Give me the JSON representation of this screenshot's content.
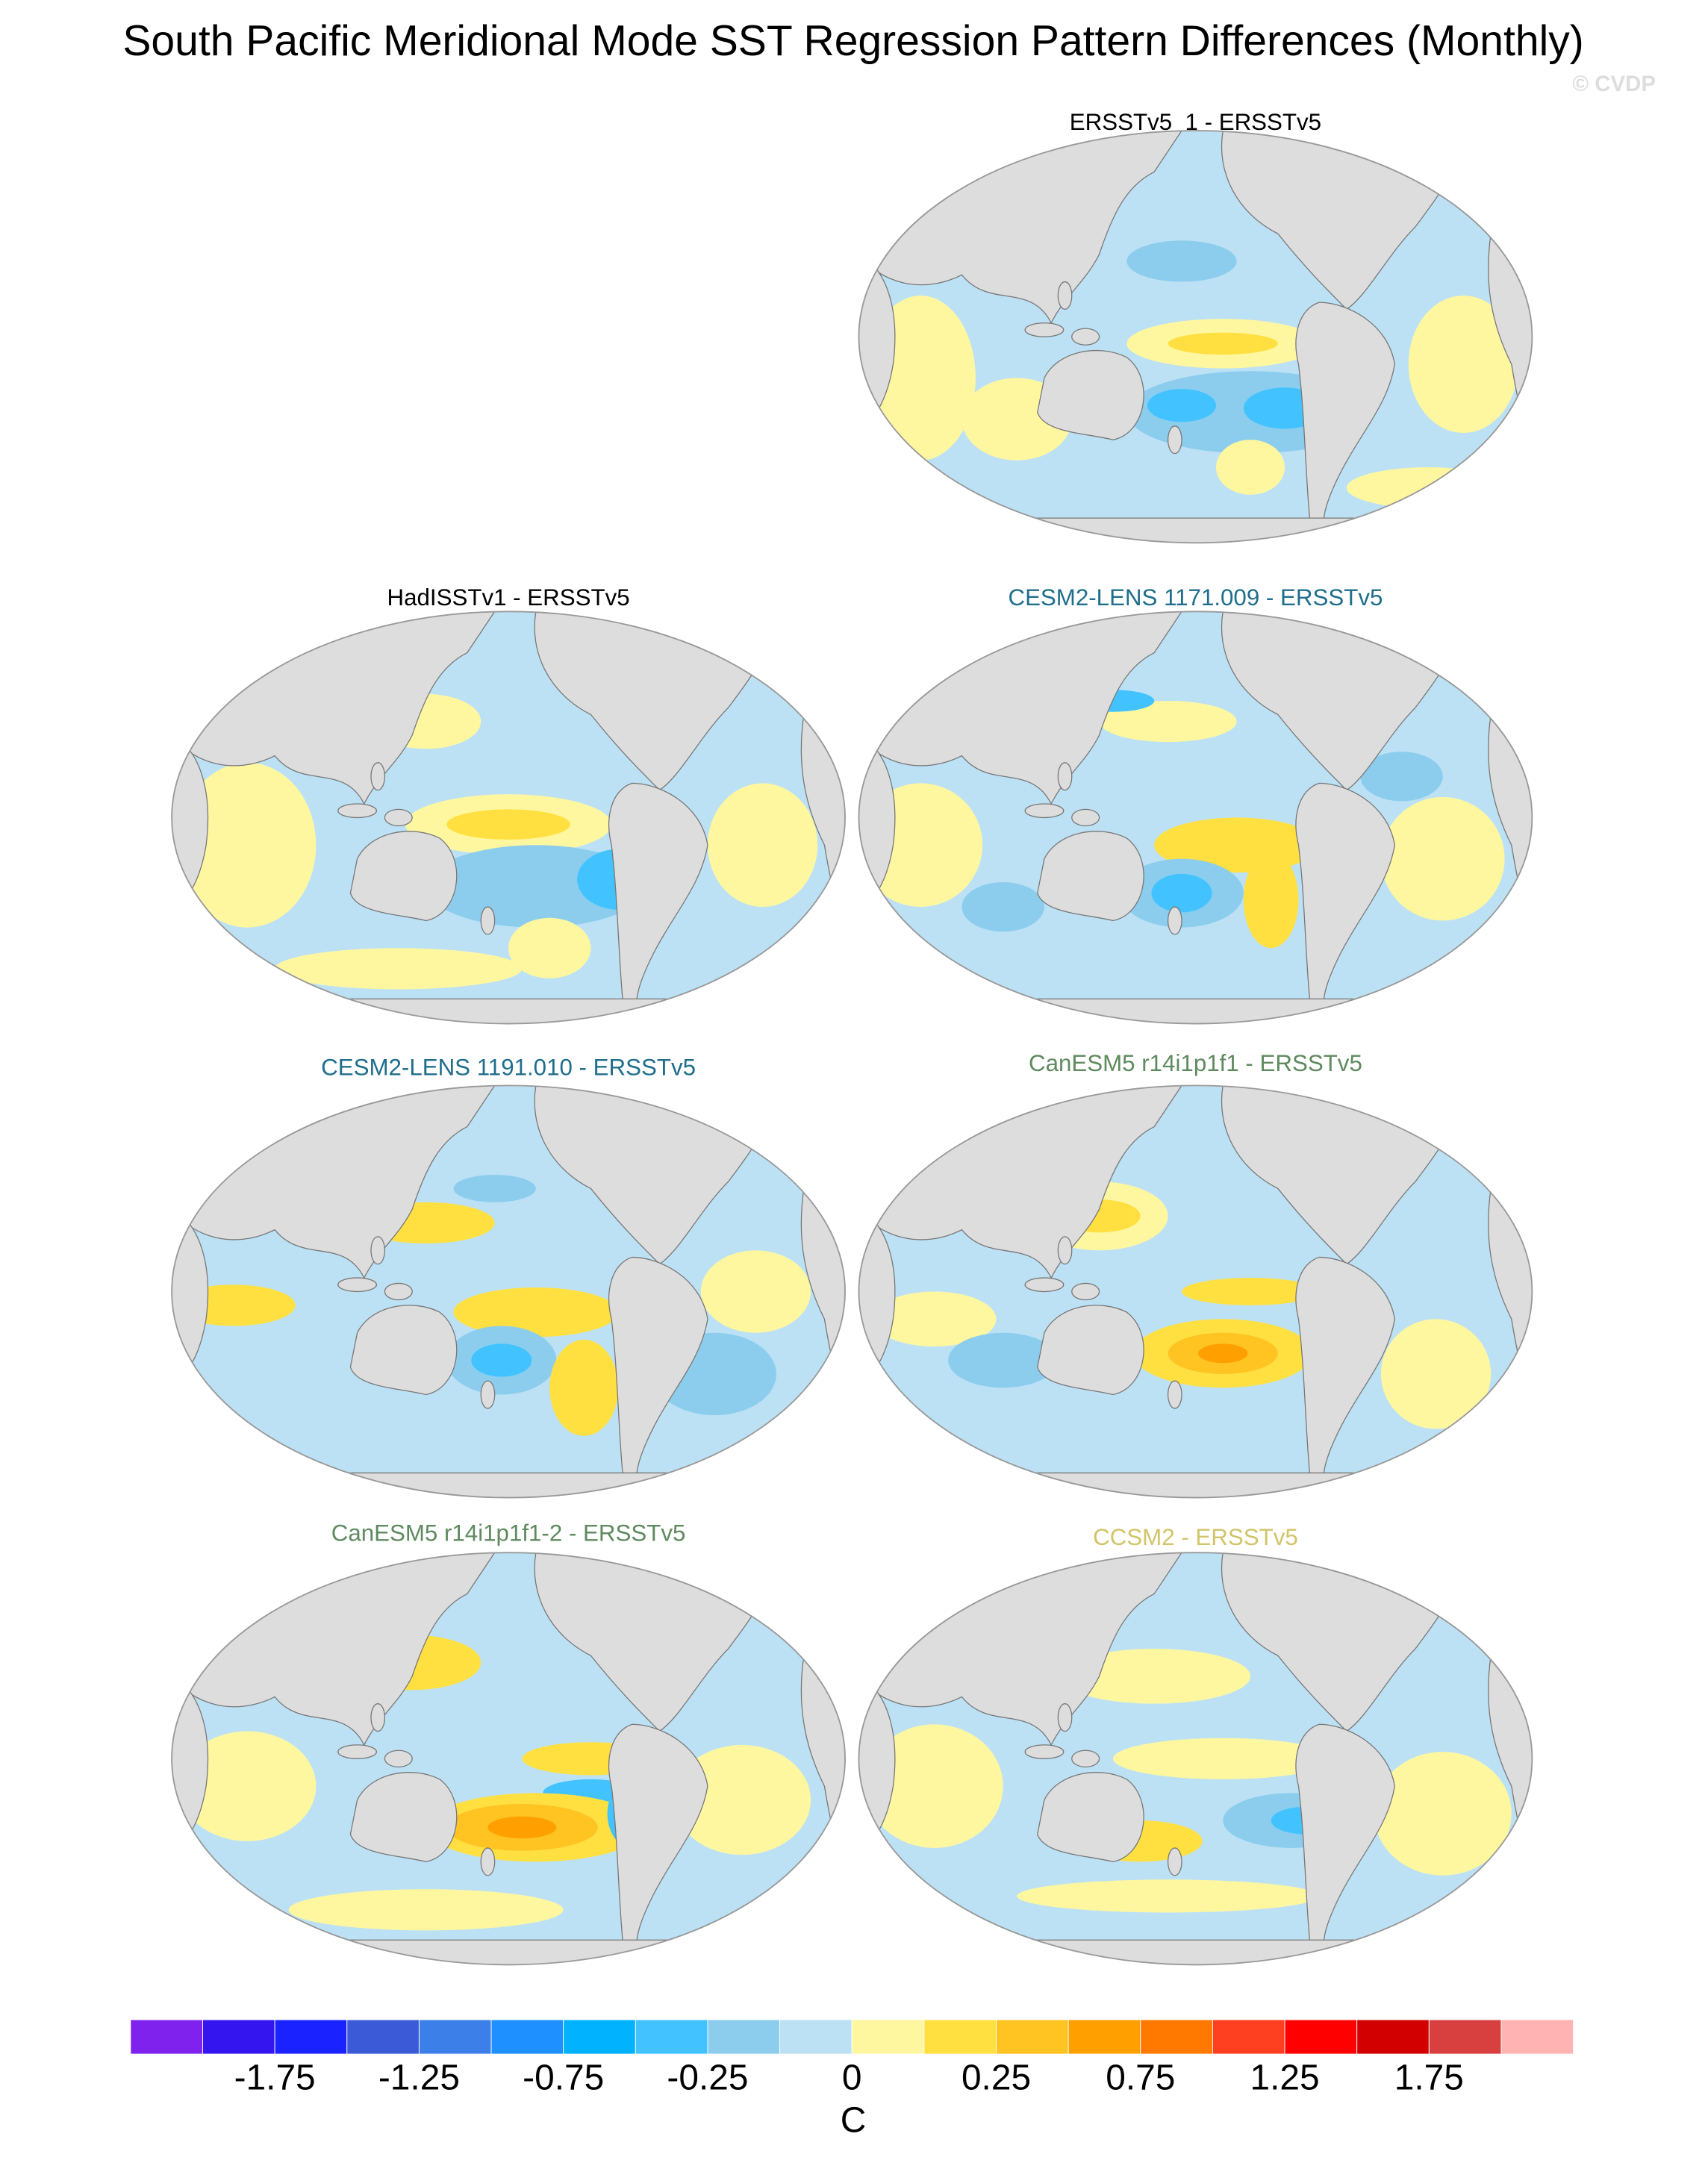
{
  "title": "South Pacific Meridional Mode SST Regression Pattern Differences (Monthly)",
  "watermark": "© CVDP",
  "panels": [
    {
      "title": "ERSSTv5_1 - ERSSTv5",
      "color": "#000000"
    },
    {
      "title": "HadISSTv1 - ERSSTv5",
      "color": "#000000"
    },
    {
      "title": "CESM2-LENS 1171.009 - ERSSTv5",
      "color": "#1f6e8c"
    },
    {
      "title": "CESM2-LENS 1191.010 - ERSSTv5",
      "color": "#1f6e8c"
    },
    {
      "title": "CanESM5 r14i1p1f1 - ERSSTv5",
      "color": "#5f8a5f"
    },
    {
      "title": "CanESM5 r14i1p1f1-2 - ERSSTv5",
      "color": "#5f8a5f"
    },
    {
      "title": "CCSM2 - ERSSTv5",
      "color": "#d2c468"
    }
  ],
  "colorbar": {
    "colors": [
      "#7f22ee",
      "#3414ef",
      "#1a22ff",
      "#3a5ad8",
      "#3d7fe8",
      "#1e90ff",
      "#00b2ff",
      "#42c3ff",
      "#8ccdee",
      "#bce1f5",
      "#fff7a0",
      "#ffe040",
      "#ffc322",
      "#ffa000",
      "#ff7800",
      "#ff4020",
      "#ff0000",
      "#d20000",
      "#d84040",
      "#ffb3b3"
    ],
    "ticks": [
      -1.75,
      -1.25,
      -0.75,
      -0.25,
      0,
      0.25,
      0.75,
      1.25,
      1.75
    ],
    "units": "C"
  }
}
